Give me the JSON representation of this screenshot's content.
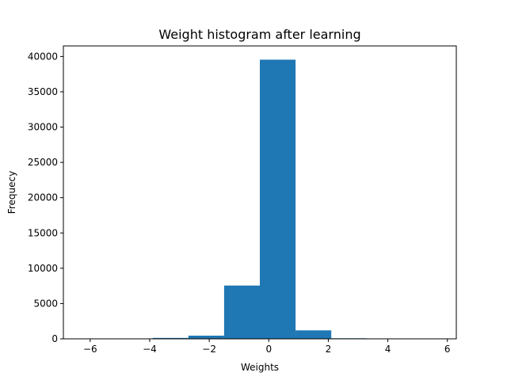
{
  "chart_data": {
    "type": "bar",
    "title": "Weight histogram after learning",
    "xlabel": "Weights",
    "ylabel": "Frequecy",
    "xlim": [
      -6.9,
      6.3
    ],
    "ylim": [
      0,
      41500
    ],
    "x_ticks": [
      -6,
      -4,
      -2,
      0,
      2,
      4,
      6
    ],
    "x_tick_labels": [
      "−6",
      "−4",
      "−2",
      "0",
      "2",
      "4",
      "6"
    ],
    "y_ticks": [
      0,
      5000,
      10000,
      15000,
      20000,
      25000,
      30000,
      35000,
      40000
    ],
    "y_tick_labels": [
      "0",
      "5000",
      "10000",
      "15000",
      "20000",
      "25000",
      "30000",
      "35000",
      "40000"
    ],
    "bin_edges": [
      -6.3,
      -5.1,
      -3.9,
      -2.7,
      -1.5,
      -0.3,
      0.9,
      2.1,
      3.3,
      4.5,
      5.7
    ],
    "values": [
      1,
      3,
      130,
      450,
      7550,
      39550,
      1200,
      80,
      5,
      1
    ],
    "bar_color": "#1f77b4",
    "grid": false
  }
}
